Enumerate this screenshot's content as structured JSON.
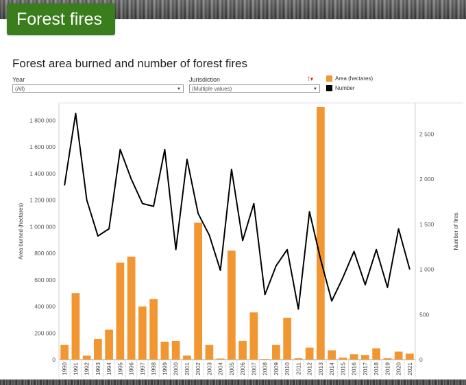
{
  "page": {
    "badge_title": "Forest fires"
  },
  "filters": {
    "year_label": "Year",
    "year_value": "(All)",
    "jurisdiction_label": "Jurisdiction",
    "jurisdiction_value": "(Multiple values)"
  },
  "colors": {
    "badge": "#3a7d1d",
    "bars": "#f29631",
    "line": "#000000"
  },
  "chart_data": {
    "type": "bar",
    "title": "Forest area burned and number of forest fires",
    "xlabel": "",
    "ylabel": "Area burned (hectares)",
    "y2label": "Number of fires",
    "categories": [
      "1990",
      "1991",
      "1992",
      "1993",
      "1994",
      "1995",
      "1996",
      "1997",
      "1998",
      "1999",
      "2000",
      "2001",
      "2002",
      "2003",
      "2004",
      "2005",
      "2006",
      "2007",
      "2008",
      "2009",
      "2010",
      "2011",
      "2012",
      "2013",
      "2014",
      "2015",
      "2016",
      "2017",
      "2018",
      "2019",
      "2020",
      "2021"
    ],
    "ylim": [
      0,
      1900000
    ],
    "y2lim": [
      0,
      2800
    ],
    "y_ticks": [
      0,
      200000,
      400000,
      600000,
      800000,
      1000000,
      1200000,
      1400000,
      1600000,
      1800000
    ],
    "y_tick_labels": [
      "0",
      "200 000",
      "400 000",
      "600 000",
      "800 000",
      "1 000 000",
      "1 200 000",
      "1 400 000",
      "1 600 000",
      "1 800 000"
    ],
    "y2_ticks": [
      0,
      500,
      1000,
      1500,
      2000,
      2500
    ],
    "y2_tick_labels": [
      "0",
      "500",
      "1 000",
      "1 500",
      "2 000",
      "2 500"
    ],
    "series": [
      {
        "name": "Area (hectares)",
        "axis": "left",
        "kind": "bar",
        "values": [
          110000,
          500000,
          30000,
          155000,
          225000,
          730000,
          775000,
          400000,
          455000,
          135000,
          140000,
          30000,
          1030000,
          110000,
          8000,
          820000,
          140000,
          355000,
          5000,
          110000,
          315000,
          10000,
          90000,
          1900000,
          70000,
          15000,
          40000,
          35000,
          85000,
          10000,
          60000,
          45000
        ]
      },
      {
        "name": "Number",
        "axis": "right",
        "kind": "line",
        "values": [
          1930,
          2730,
          1770,
          1370,
          1450,
          2330,
          2000,
          1730,
          1700,
          2330,
          1220,
          2220,
          1620,
          1380,
          990,
          2110,
          1320,
          1730,
          720,
          1040,
          1220,
          560,
          1640,
          1110,
          650,
          910,
          1200,
          830,
          1220,
          800,
          1450,
          1000
        ]
      }
    ]
  }
}
